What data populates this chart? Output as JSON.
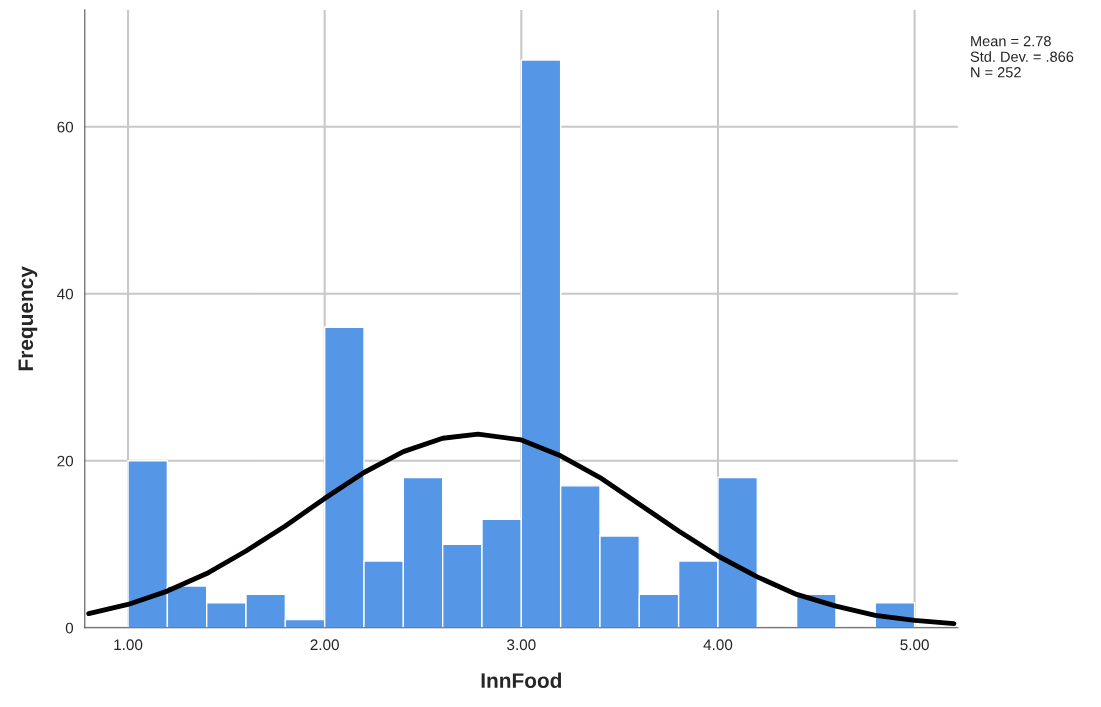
{
  "chart_data": {
    "type": "histogram",
    "xlabel": "InnFood",
    "ylabel": "Frequency",
    "series": [
      {
        "type": "histogram",
        "color": "#5596e6",
        "bins": [
          1.0,
          1.2,
          1.4,
          1.6,
          1.8,
          2.0,
          2.2,
          2.4,
          2.6,
          2.8,
          3.0,
          3.2,
          3.4,
          3.6,
          3.8,
          4.0,
          4.2,
          4.4,
          4.6,
          4.8,
          5.0
        ],
        "values": [
          20,
          5,
          3,
          4,
          1,
          36,
          8,
          18,
          10,
          13,
          68,
          17,
          11,
          4,
          8,
          18,
          0,
          4,
          0,
          3
        ]
      },
      {
        "type": "line",
        "color": "#000000",
        "x": [
          0.8,
          1.0,
          1.2,
          1.4,
          1.6,
          1.8,
          2.0,
          2.2,
          2.4,
          2.6,
          2.78,
          3.0,
          3.2,
          3.4,
          3.6,
          3.8,
          4.0,
          4.2,
          4.4,
          4.6,
          4.8,
          5.0,
          5.2
        ],
        "values": [
          1.7,
          2.8,
          4.4,
          6.5,
          9.2,
          12.2,
          15.5,
          18.6,
          21.1,
          22.7,
          23.2,
          22.5,
          20.6,
          18.0,
          14.8,
          11.6,
          8.6,
          6.1,
          4.0,
          2.6,
          1.5,
          0.9,
          0.5
        ]
      }
    ],
    "xlim": [
      0.78,
      5.22
    ],
    "xticks": [
      {
        "value": 1,
        "label": "1.00"
      },
      {
        "value": 2,
        "label": "2.00"
      },
      {
        "value": 3,
        "label": "3.00"
      },
      {
        "value": 4,
        "label": "4.00"
      },
      {
        "value": 5,
        "label": "5.00"
      }
    ],
    "ylim": [
      0,
      74
    ],
    "yticks": [
      0,
      20,
      40,
      60
    ],
    "grid": true,
    "annotations": [
      "Mean = 2.78",
      "Std. Dev. = .866",
      "N = 252"
    ]
  }
}
